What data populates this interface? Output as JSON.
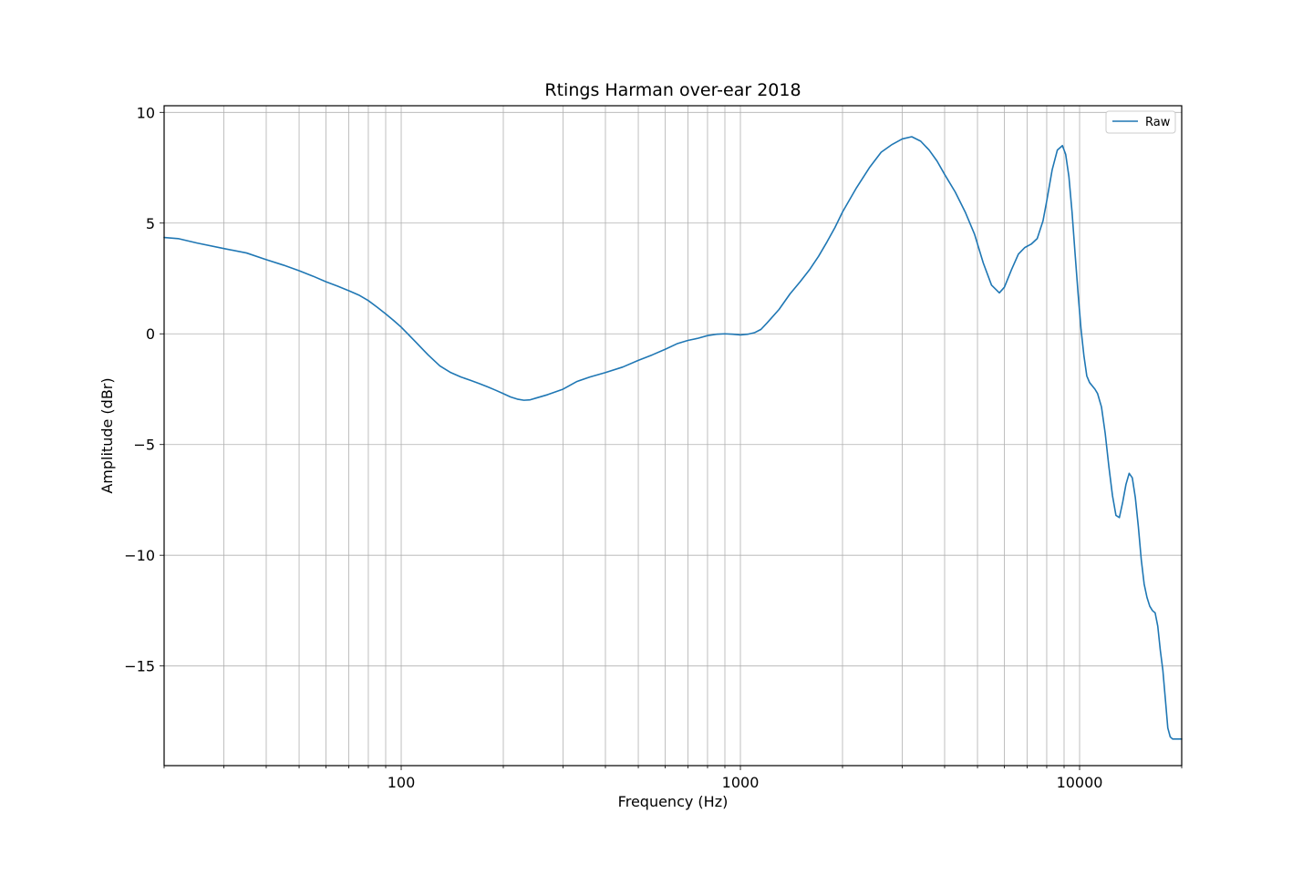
{
  "chart_data": {
    "type": "line",
    "title": "Rtings Harman over-ear 2018",
    "xlabel": "Frequency (Hz)",
    "ylabel": "Amplitude (dBr)",
    "xscale": "log",
    "xlim": [
      20,
      20000
    ],
    "ylim": [
      -19.5,
      10.3
    ],
    "xticks": [
      100,
      1000,
      10000
    ],
    "xtick_labels": [
      "100",
      "1000",
      "10000"
    ],
    "yticks": [
      10,
      5,
      0,
      -5,
      -10,
      -15
    ],
    "ytick_labels": [
      "10",
      "5",
      "0",
      "−5",
      "−10",
      "−15"
    ],
    "grid": true,
    "legend": "top-right",
    "series": [
      {
        "name": "Raw",
        "color": "#1f77b4",
        "x": [
          20,
          22,
          25,
          30,
          35,
          40,
          45,
          50,
          55,
          60,
          65,
          70,
          75,
          80,
          85,
          90,
          95,
          100,
          110,
          120,
          130,
          140,
          150,
          160,
          170,
          180,
          190,
          200,
          210,
          220,
          230,
          240,
          250,
          270,
          300,
          330,
          360,
          400,
          450,
          500,
          550,
          600,
          650,
          700,
          750,
          800,
          850,
          900,
          950,
          1000,
          1050,
          1100,
          1150,
          1200,
          1300,
          1400,
          1500,
          1600,
          1700,
          1800,
          1900,
          2000,
          2200,
          2400,
          2600,
          2800,
          3000,
          3200,
          3400,
          3600,
          3800,
          4000,
          4300,
          4600,
          4900,
          5200,
          5500,
          5800,
          6000,
          6300,
          6600,
          6900,
          7200,
          7500,
          7800,
          8000,
          8300,
          8600,
          8900,
          9100,
          9300,
          9500,
          9700,
          9900,
          10100,
          10300,
          10500,
          10700,
          10900,
          11100,
          11300,
          11600,
          11900,
          12200,
          12500,
          12800,
          13100,
          13400,
          13700,
          14000,
          14300,
          14600,
          14900,
          15200,
          15500,
          15800,
          16100,
          16400,
          16700,
          17000,
          17300,
          17600,
          17900,
          18200,
          18500,
          18800,
          19100,
          19400,
          19700,
          20000
        ],
        "y": [
          4.35,
          4.3,
          4.1,
          3.85,
          3.65,
          3.35,
          3.1,
          2.85,
          2.6,
          2.35,
          2.15,
          1.95,
          1.75,
          1.5,
          1.2,
          0.9,
          0.6,
          0.3,
          -0.35,
          -0.95,
          -1.45,
          -1.75,
          -1.95,
          -2.1,
          -2.25,
          -2.4,
          -2.55,
          -2.7,
          -2.85,
          -2.95,
          -3.0,
          -2.98,
          -2.9,
          -2.75,
          -2.5,
          -2.15,
          -1.95,
          -1.75,
          -1.5,
          -1.2,
          -0.95,
          -0.7,
          -0.45,
          -0.3,
          -0.2,
          -0.08,
          -0.02,
          0.0,
          -0.02,
          -0.05,
          -0.02,
          0.05,
          0.2,
          0.5,
          1.1,
          1.8,
          2.35,
          2.9,
          3.5,
          4.15,
          4.8,
          5.5,
          6.6,
          7.5,
          8.2,
          8.55,
          8.8,
          8.9,
          8.7,
          8.3,
          7.8,
          7.2,
          6.4,
          5.5,
          4.5,
          3.2,
          2.2,
          1.85,
          2.1,
          2.9,
          3.6,
          3.9,
          4.05,
          4.3,
          5.1,
          6.0,
          7.4,
          8.3,
          8.5,
          8.1,
          7.1,
          5.5,
          3.6,
          1.8,
          0.2,
          -1.0,
          -1.9,
          -2.2,
          -2.35,
          -2.5,
          -2.7,
          -3.3,
          -4.5,
          -6.0,
          -7.3,
          -8.2,
          -8.3,
          -7.6,
          -6.8,
          -6.3,
          -6.5,
          -7.4,
          -8.7,
          -10.2,
          -11.3,
          -11.9,
          -12.3,
          -12.5,
          -12.6,
          -13.2,
          -14.3,
          -15.2,
          -16.5,
          -17.8,
          -18.2,
          -18.3,
          -18.3,
          -18.3,
          -18.3,
          -18.3
        ]
      }
    ]
  }
}
